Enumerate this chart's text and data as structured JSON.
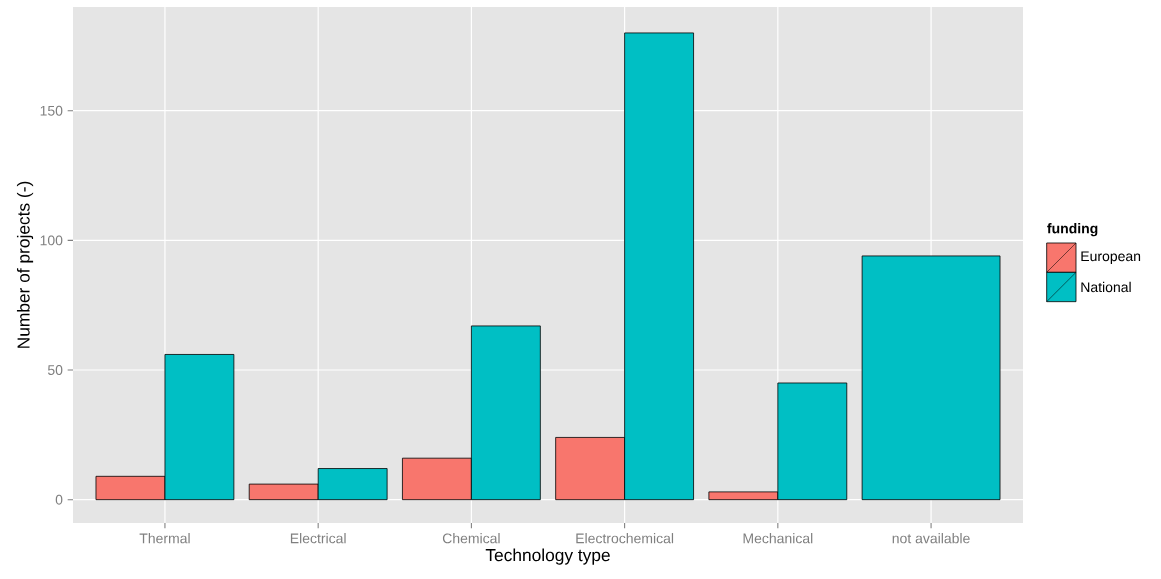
{
  "chart_data": {
    "type": "bar",
    "xlabel": "Technology type",
    "ylabel": "Number of projects (-)",
    "legend_title": "funding",
    "categories": [
      "Thermal",
      "Electrical",
      "Chemical",
      "Electrochemical",
      "Mechanical",
      "not available"
    ],
    "series": [
      {
        "name": "European",
        "color": "#f8766d",
        "values": [
          9,
          6,
          16,
          24,
          3,
          null
        ]
      },
      {
        "name": "National",
        "color": "#00bfc4",
        "values": [
          56,
          12,
          67,
          180,
          45,
          94
        ]
      }
    ],
    "ylim": [
      -9,
      190
    ],
    "yticks": [
      0,
      50,
      100,
      150
    ],
    "grid": true,
    "legend": "right"
  }
}
